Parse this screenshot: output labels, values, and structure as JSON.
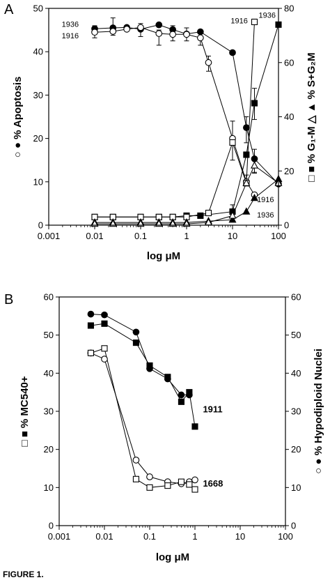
{
  "figure_caption": "FIGURE 1.",
  "chart_data": [
    {
      "panel": "A",
      "type": "line",
      "xlabel": "log μM",
      "xscale": "log",
      "xlim": [
        0.001,
        100
      ],
      "x_ticks": [
        "0.001",
        "0.01",
        "0.1",
        "1",
        "10",
        "100"
      ],
      "ylabel_left": "○ ● % Apoptosis",
      "ylim_left": [
        0,
        50
      ],
      "y_ticks_left": [
        "0",
        "10",
        "20",
        "30",
        "40",
        "50"
      ],
      "ylabel_right": "□ ■ % G₁-M     △ ▲ % S+G₂M",
      "ylim_right": [
        0,
        80
      ],
      "y_ticks_right": [
        "0",
        "20",
        "40",
        "60",
        "80"
      ],
      "annotations": [
        {
          "text": "1936",
          "x": 0.0045,
          "y": 46.4,
          "axis": "left",
          "anchor": "end"
        },
        {
          "text": "1916",
          "x": 0.0045,
          "y": 43.7,
          "axis": "left",
          "anchor": "end"
        },
        {
          "text": "1916",
          "x": 14,
          "y": 75.5,
          "axis": "right",
          "anchor": "middle"
        },
        {
          "text": "1936",
          "x": 37,
          "y": 77.5,
          "axis": "right",
          "anchor": "start"
        },
        {
          "text": "1916",
          "x": 34,
          "y": 9.5,
          "axis": "right",
          "anchor": "start"
        },
        {
          "text": "1936",
          "x": 34,
          "y": 3.8,
          "axis": "right",
          "anchor": "start"
        }
      ],
      "series": [
        {
          "marker": "filled-circle",
          "axis": "left",
          "x": [
            0.01,
            0.025,
            0.05,
            0.1,
            0.25,
            0.5,
            1,
            2,
            10,
            20,
            30,
            100
          ],
          "y": [
            45.3,
            45.5,
            45.6,
            45.2,
            46.2,
            45.1,
            44.1,
            44.6,
            39.8,
            22.5,
            15.3,
            9.5
          ]
        },
        {
          "marker": "open-circle",
          "axis": "left",
          "x": [
            0.01,
            0.025,
            0.05,
            0.1,
            0.25,
            0.5,
            1,
            2,
            3,
            10,
            20,
            30
          ],
          "y": [
            44.5,
            44.7,
            45.2,
            45.6,
            44.2,
            44.0,
            44.0,
            43.2,
            37.5,
            20.0,
            10.0,
            7.0
          ]
        },
        {
          "marker": "filled-square",
          "axis": "right",
          "x": [
            0.01,
            0.025,
            0.1,
            0.25,
            0.5,
            1,
            2,
            10,
            20,
            30,
            100
          ],
          "y": [
            3.0,
            3.0,
            3.0,
            3.0,
            3.0,
            3.5,
            3.5,
            5.0,
            26.0,
            45.0,
            74.0
          ]
        },
        {
          "marker": "open-square",
          "axis": "right",
          "x": [
            0.01,
            0.025,
            0.1,
            0.25,
            0.5,
            1,
            3,
            10,
            20,
            30
          ],
          "y": [
            3.0,
            3.0,
            3.0,
            3.0,
            3.0,
            3.0,
            4.5,
            30.5,
            15.5,
            75.0
          ]
        },
        {
          "marker": "filled-triangle",
          "axis": "right",
          "x": [
            0.01,
            0.025,
            0.1,
            0.25,
            0.5,
            1,
            3,
            10,
            20,
            30,
            100
          ],
          "y": [
            1.0,
            1.0,
            1.0,
            1.0,
            1.0,
            1.0,
            1.5,
            2.0,
            5.0,
            10.0,
            17.0
          ]
        },
        {
          "marker": "open-triangle",
          "axis": "right",
          "x": [
            0.01,
            0.025,
            0.1,
            0.25,
            0.5,
            1,
            3,
            10,
            20,
            30,
            100
          ],
          "y": [
            0.5,
            0.5,
            0.5,
            0.5,
            0.5,
            0.5,
            1.0,
            3.5,
            15.5,
            22.0,
            15.5
          ]
        }
      ],
      "error_bars": [
        {
          "axis": "left",
          "x": 0.01,
          "low": 43.2,
          "high": 46.0
        },
        {
          "axis": "left",
          "x": 0.025,
          "low": 43.8,
          "high": 47.8
        },
        {
          "axis": "left",
          "x": 0.1,
          "low": 43.5,
          "high": 46.5
        },
        {
          "axis": "left",
          "x": 0.25,
          "low": 41.5,
          "high": 45.0
        },
        {
          "axis": "left",
          "x": 0.5,
          "low": 42.5,
          "high": 46.0
        },
        {
          "axis": "left",
          "x": 1,
          "low": 42.5,
          "high": 45.5
        },
        {
          "axis": "left",
          "x": 2,
          "low": 41.5,
          "high": 44.5
        },
        {
          "axis": "left",
          "x": 3,
          "low": 35.5,
          "high": 39.0
        },
        {
          "axis": "left",
          "x": 10,
          "low": 15.0,
          "high": 24.0
        },
        {
          "axis": "left",
          "x": 20,
          "low": 19.0,
          "high": 25.0
        },
        {
          "axis": "left",
          "x": 30,
          "low": 12.0,
          "high": 17.5
        },
        {
          "axis": "right",
          "x": 30,
          "low": 39.0,
          "high": 50.5
        },
        {
          "axis": "right",
          "x": 20,
          "low": 14.5,
          "high": 18.5
        },
        {
          "axis": "right",
          "x": 30,
          "low": 19.5,
          "high": 24.0
        },
        {
          "axis": "right",
          "x": 10,
          "low": 2.0,
          "high": 7.5
        }
      ]
    },
    {
      "panel": "B",
      "type": "line",
      "xlabel": "log μM",
      "xscale": "log",
      "xlim": [
        0.001,
        100
      ],
      "x_ticks": [
        "0.001",
        "0.01",
        "0.1",
        "1",
        "10",
        "100"
      ],
      "ylabel_left": "□ ■ % MC540+",
      "ylim_left": [
        0,
        60
      ],
      "y_ticks_left": [
        "0",
        "10",
        "20",
        "30",
        "40",
        "50",
        "60"
      ],
      "ylabel_right": "○ ● % Hypodiploid Nuclei",
      "ylim_right": [
        0,
        60
      ],
      "y_ticks_right": [
        "0",
        "10",
        "20",
        "30",
        "40",
        "50",
        "60"
      ],
      "annotations": [
        {
          "text": "1911",
          "x": 1.5,
          "y": 30.5,
          "axis": "left",
          "anchor": "start"
        },
        {
          "text": "1668",
          "x": 1.5,
          "y": 11.0,
          "axis": "left",
          "anchor": "start"
        }
      ],
      "series": [
        {
          "marker": "filled-circle",
          "axis": "left",
          "x": [
            0.005,
            0.01,
            0.05,
            0.1,
            0.25,
            0.5,
            0.75
          ],
          "y": [
            55.5,
            55.3,
            50.8,
            41.2,
            38.5,
            34.3,
            34.3
          ]
        },
        {
          "marker": "filled-square",
          "axis": "left",
          "x": [
            0.005,
            0.01,
            0.05,
            0.1,
            0.25,
            0.5,
            0.75,
            1
          ],
          "y": [
            52.5,
            53.0,
            48.0,
            42.0,
            39.0,
            32.5,
            35.0,
            26.0
          ]
        },
        {
          "marker": "open-circle",
          "axis": "left",
          "x": [
            0.005,
            0.01,
            0.05,
            0.1,
            0.25,
            0.5,
            0.75,
            1
          ],
          "y": [
            45.3,
            43.7,
            17.2,
            12.8,
            11.5,
            11.0,
            11.5,
            12.0
          ]
        },
        {
          "marker": "open-square",
          "axis": "left",
          "x": [
            0.005,
            0.01,
            0.05,
            0.1,
            0.25,
            0.5,
            0.75,
            1
          ],
          "y": [
            45.3,
            46.5,
            12.2,
            10.0,
            10.5,
            11.5,
            10.8,
            9.5
          ]
        }
      ],
      "error_bars": []
    }
  ]
}
